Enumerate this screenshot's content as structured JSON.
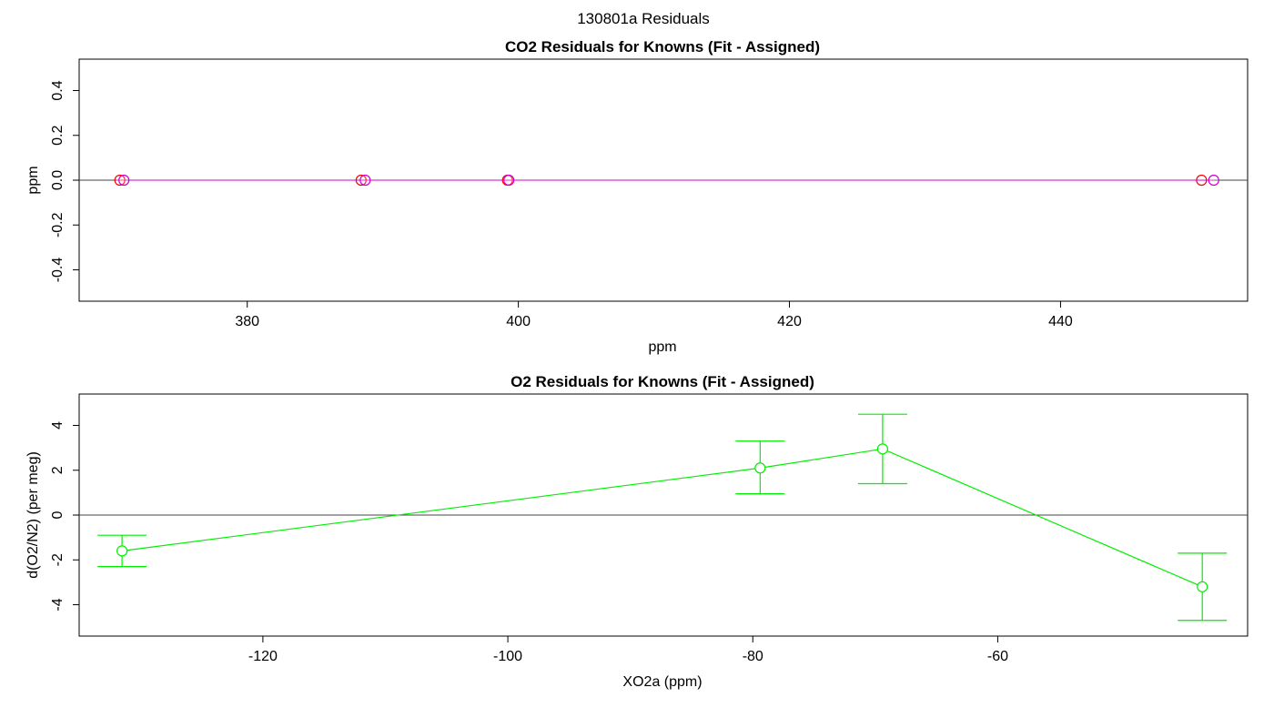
{
  "figure_title": "130801a  Residuals",
  "chart_data": [
    {
      "type": "scatter",
      "title": "CO2 Residuals for Knowns (Fit - Assigned)",
      "xlabel": "ppm",
      "ylabel": "ppm",
      "xlim": [
        367.6,
        453.8
      ],
      "ylim": [
        -0.54,
        0.54
      ],
      "xticks": [
        380,
        400,
        420,
        440
      ],
      "yticks": [
        -0.4,
        -0.2,
        0.0,
        0.2,
        0.4
      ],
      "ytick_labels": [
        "-0.4",
        "-0.2",
        "0.0",
        "0.2",
        "0.4"
      ],
      "reference_line": 0,
      "grid": false,
      "series": [
        {
          "color": "#ff0000",
          "x": [
            370.6,
            388.4,
            399.2,
            450.4
          ],
          "values": [
            0,
            0,
            0,
            0
          ]
        },
        {
          "color": "#cc00cc",
          "x": [
            370.9,
            388.7,
            399.3,
            451.3
          ],
          "values": [
            0,
            0,
            0,
            0
          ]
        }
      ]
    },
    {
      "type": "line",
      "title": "O2 Residuals for Knowns (Fit - Assigned)",
      "xlabel": "XO2a (ppm)",
      "ylabel": "d(O2/N2) (per meg)",
      "xlim": [
        -135.0,
        -39.6
      ],
      "ylim": [
        -5.4,
        5.4
      ],
      "xticks": [
        -120,
        -100,
        -80,
        -60
      ],
      "yticks": [
        -4,
        -2,
        0,
        2,
        4
      ],
      "reference_line": 0,
      "grid": false,
      "series": [
        {
          "color": "#00ee00",
          "x": [
            -131.5,
            -79.4,
            -69.4,
            -43.3
          ],
          "values": [
            -1.6,
            2.1,
            2.95,
            -3.2
          ],
          "error_low": [
            -2.3,
            0.95,
            1.4,
            -4.7
          ],
          "error_high": [
            -0.9,
            3.3,
            4.5,
            -1.7
          ]
        }
      ]
    }
  ]
}
